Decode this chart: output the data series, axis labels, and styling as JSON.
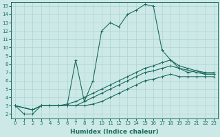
{
  "xlabel": "Humidex (Indice chaleur)",
  "ylabel": "",
  "bg_color": "#cce9e7",
  "grid_color": "#b0d4d0",
  "line_color": "#1a6b5a",
  "xlim": [
    -0.5,
    23.5
  ],
  "ylim": [
    1.5,
    15.5
  ],
  "xticks": [
    0,
    1,
    2,
    3,
    4,
    5,
    6,
    7,
    8,
    9,
    10,
    11,
    12,
    13,
    14,
    15,
    16,
    17,
    18,
    19,
    20,
    21,
    22,
    23
  ],
  "yticks": [
    2,
    3,
    4,
    5,
    6,
    7,
    8,
    9,
    10,
    11,
    12,
    13,
    14,
    15
  ],
  "lines": [
    {
      "x": [
        0,
        1,
        2,
        3,
        4,
        5,
        6,
        7,
        8,
        9,
        10,
        11,
        12,
        13,
        14,
        15,
        16,
        17,
        18,
        19,
        20,
        21,
        22,
        23
      ],
      "y": [
        3,
        2,
        2,
        3,
        3,
        3,
        3,
        8.5,
        3.5,
        6,
        12,
        13,
        12.5,
        14,
        14.5,
        15.2,
        15,
        9.7,
        8.5,
        7.5,
        7,
        7.2,
        6.8,
        6.8
      ]
    },
    {
      "x": [
        0,
        2,
        3,
        4,
        5,
        6,
        7,
        8,
        9,
        10,
        11,
        12,
        13,
        14,
        15,
        16,
        17,
        18,
        19,
        20,
        21,
        22,
        23
      ],
      "y": [
        3,
        2.5,
        3,
        3,
        3,
        3.2,
        3.5,
        4,
        4.5,
        5,
        5.5,
        6,
        6.5,
        7,
        7.5,
        7.8,
        8.2,
        8.5,
        7.8,
        7.5,
        7.2,
        7.0,
        7.0
      ]
    },
    {
      "x": [
        0,
        2,
        3,
        4,
        5,
        6,
        7,
        8,
        9,
        10,
        11,
        12,
        13,
        14,
        15,
        16,
        17,
        18,
        19,
        20,
        21,
        22,
        23
      ],
      "y": [
        3,
        2.5,
        3,
        3,
        3,
        3,
        3,
        3.5,
        4,
        4.5,
        5,
        5.5,
        6,
        6.5,
        7,
        7.2,
        7.5,
        7.8,
        7.5,
        7.3,
        7.0,
        6.8,
        6.8
      ]
    },
    {
      "x": [
        0,
        2,
        3,
        4,
        5,
        6,
        7,
        8,
        9,
        10,
        11,
        12,
        13,
        14,
        15,
        16,
        17,
        18,
        19,
        20,
        21,
        22,
        23
      ],
      "y": [
        3,
        2.5,
        3,
        3,
        3,
        3,
        3,
        3,
        3.2,
        3.5,
        4,
        4.5,
        5,
        5.5,
        6,
        6.2,
        6.5,
        6.8,
        6.5,
        6.5,
        6.5,
        6.5,
        6.5
      ]
    }
  ],
  "marker": "+",
  "markersize": 3,
  "linewidth": 0.8,
  "tick_fontsize": 5.0,
  "label_fontsize": 6.5
}
